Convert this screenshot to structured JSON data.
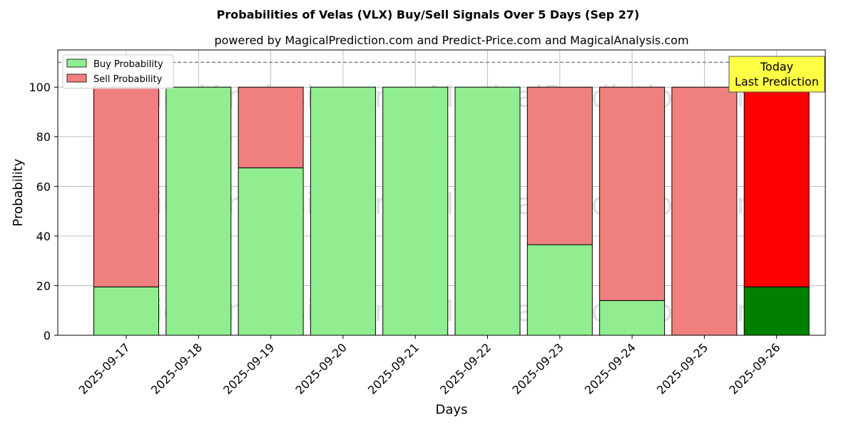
{
  "chart_data": {
    "type": "bar",
    "stacked": true,
    "title": "Probabilities of Velas (VLX) Buy/Sell Signals Over 5 Days (Sep 27)",
    "subtitle": "powered by MagicalPrediction.com and Predict-Price.com and MagicalAnalysis.com",
    "xlabel": "Days",
    "ylabel": "Probability",
    "ylim": [
      0,
      115
    ],
    "yticks": [
      0,
      20,
      40,
      60,
      80,
      100
    ],
    "reference_line": 110,
    "grid": true,
    "legend_position": "top-left",
    "categories": [
      "2025-09-17",
      "2025-09-18",
      "2025-09-19",
      "2025-09-20",
      "2025-09-21",
      "2025-09-22",
      "2025-09-23",
      "2025-09-24",
      "2025-09-25",
      "2025-09-26"
    ],
    "series": [
      {
        "name": "Buy Probability",
        "color": "#90ee90",
        "values": [
          19.5,
          100,
          67.5,
          100,
          100,
          100,
          36.5,
          14,
          0,
          19.5
        ]
      },
      {
        "name": "Sell Probability",
        "color": "#f08080",
        "values": [
          80.5,
          0,
          32.5,
          0,
          0,
          0,
          63.5,
          86,
          100,
          80.5
        ]
      }
    ],
    "highlight": {
      "index": 9,
      "buy_color": "#008000",
      "sell_color": "#ff0000"
    },
    "annotation": {
      "lines": [
        "Today",
        "Last Prediction"
      ],
      "background": "#ffff44"
    },
    "watermarks": [
      "MagicalAnalysis.com",
      "MagicalPrediction.com"
    ]
  }
}
